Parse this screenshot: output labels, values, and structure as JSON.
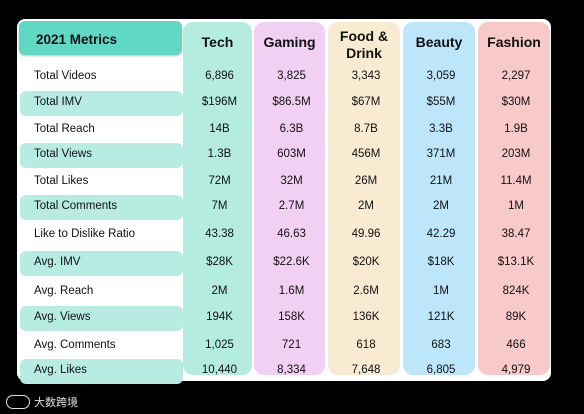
{
  "table": {
    "corner_label": "2021 Metrics",
    "columns": [
      {
        "label": "Tech",
        "color": "#b4eddf"
      },
      {
        "label": "Gaming",
        "color": "#f2d0f3"
      },
      {
        "label": "Food & Drink",
        "color": "#f8ebd2"
      },
      {
        "label": "Beauty",
        "color": "#bde6fb"
      },
      {
        "label": "Fashion",
        "color": "#f8c9c9"
      }
    ],
    "row_label_highlight": "#b7ece3",
    "rows": [
      {
        "label": "Total Videos",
        "values": [
          "6,896",
          "3,825",
          "3,343",
          "3,059",
          "2,297"
        ]
      },
      {
        "label": "Total IMV",
        "values": [
          "$196M",
          "$86.5M",
          "$67M",
          "$55M",
          "$30M"
        ]
      },
      {
        "label": "Total Reach",
        "values": [
          "14B",
          "6.3B",
          "8.7B",
          "3.3B",
          "1.9B"
        ]
      },
      {
        "label": "Total Views",
        "values": [
          "1.3B",
          "603M",
          "456M",
          "371M",
          "203M"
        ]
      },
      {
        "label": "Total Likes",
        "values": [
          "72M",
          "32M",
          "26M",
          "21M",
          "11.4M"
        ]
      },
      {
        "label": "Total Comments",
        "values": [
          "7M",
          "2.7M",
          "2M",
          "2M",
          "1M"
        ]
      },
      {
        "label": "Like to Dislike Ratio",
        "values": [
          "43.38",
          "46.63",
          "49.96",
          "42.29",
          "38.47"
        ]
      },
      {
        "label": "Avg. IMV",
        "values": [
          "$28K",
          "$22.6K",
          "$20K",
          "$18K",
          "$13.1K"
        ]
      },
      {
        "label": "Avg. Reach",
        "values": [
          "2M",
          "1.6M",
          "2.6M",
          "1M",
          "824K"
        ]
      },
      {
        "label": "Avg. Views",
        "values": [
          "194K",
          "158K",
          "136K",
          "121K",
          "89K"
        ]
      },
      {
        "label": "Avg. Comments",
        "values": [
          "1,025",
          "721",
          "618",
          "683",
          "466"
        ]
      },
      {
        "label": "Avg. Likes",
        "values": [
          "10,440",
          "8,334",
          "7,648",
          "6,805",
          "4,979"
        ]
      }
    ]
  },
  "watermark": {
    "text": "大数跨境",
    "icon": "logo-icon"
  }
}
